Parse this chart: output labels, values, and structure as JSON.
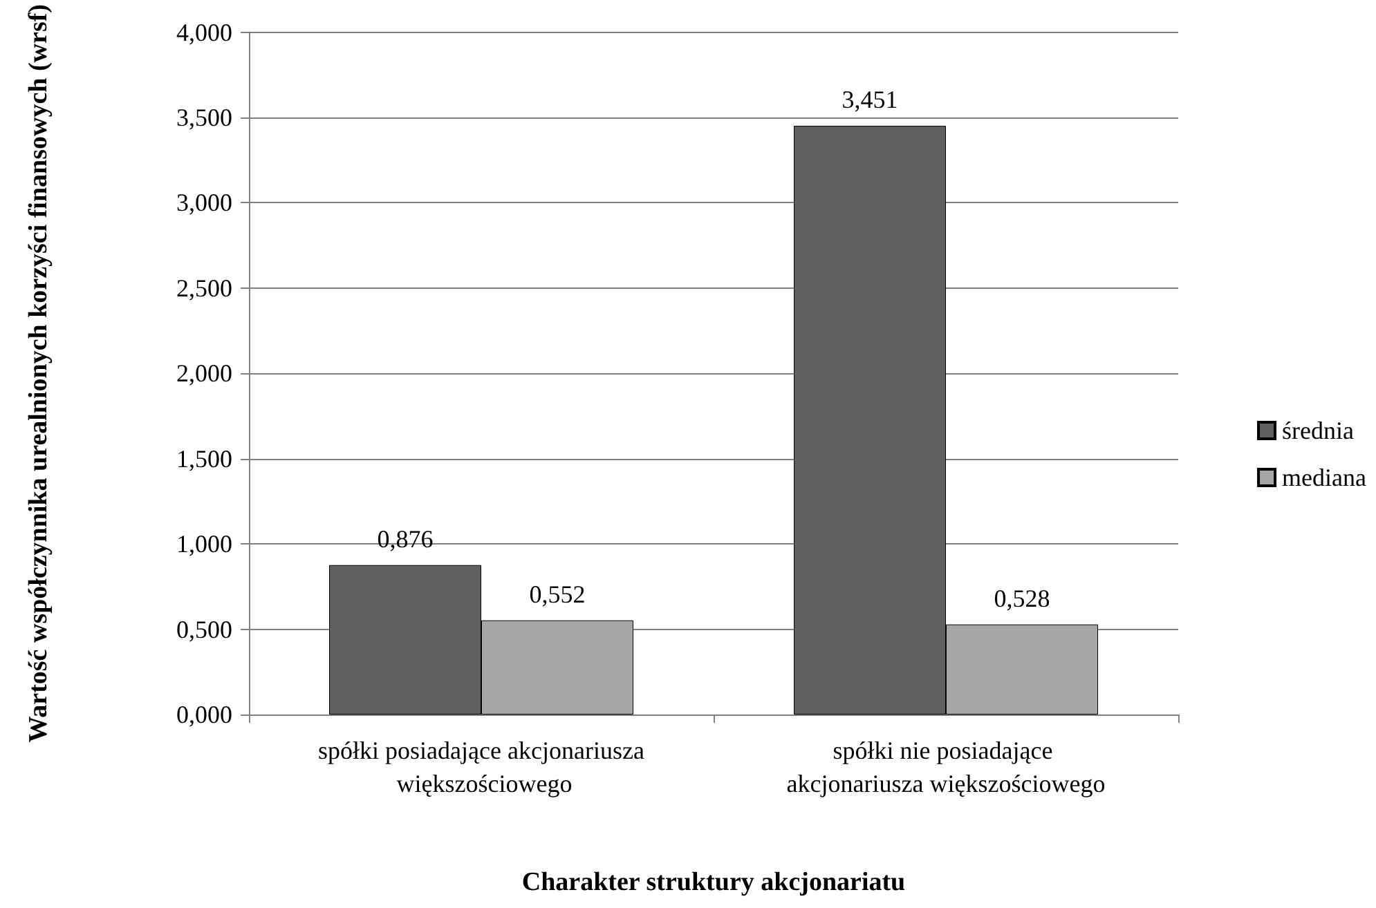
{
  "chart_data": {
    "type": "bar",
    "xlabel": "Charakter struktury akcjonariatu",
    "ylabel": "Wartość współczynnika urealnionych korzyści finansowych (wrsf)",
    "categories": [
      "spółki posiadające akcjonariusza większościowego",
      "spółki nie posiadające akcjonariusza większościowego"
    ],
    "series": [
      {
        "name": "średnia",
        "color": "#606060",
        "values": [
          0.876,
          3.451
        ],
        "value_labels": [
          "0,876",
          "3,451"
        ]
      },
      {
        "name": "mediana",
        "color": "#a6a6a6",
        "values": [
          0.552,
          0.528
        ],
        "value_labels": [
          "0,552",
          "0,528"
        ]
      }
    ],
    "ylim": [
      0,
      4
    ],
    "yticks": [
      {
        "value": 0,
        "label": "0,000"
      },
      {
        "value": 0.5,
        "label": "0,500"
      },
      {
        "value": 1,
        "label": "1,000"
      },
      {
        "value": 1.5,
        "label": "1,500"
      },
      {
        "value": 2,
        "label": "2,000"
      },
      {
        "value": 2.5,
        "label": "2,500"
      },
      {
        "value": 3,
        "label": "3,000"
      },
      {
        "value": 3.5,
        "label": "3,500"
      },
      {
        "value": 4,
        "label": "4,000"
      }
    ],
    "grid": "y",
    "legend": "right"
  }
}
